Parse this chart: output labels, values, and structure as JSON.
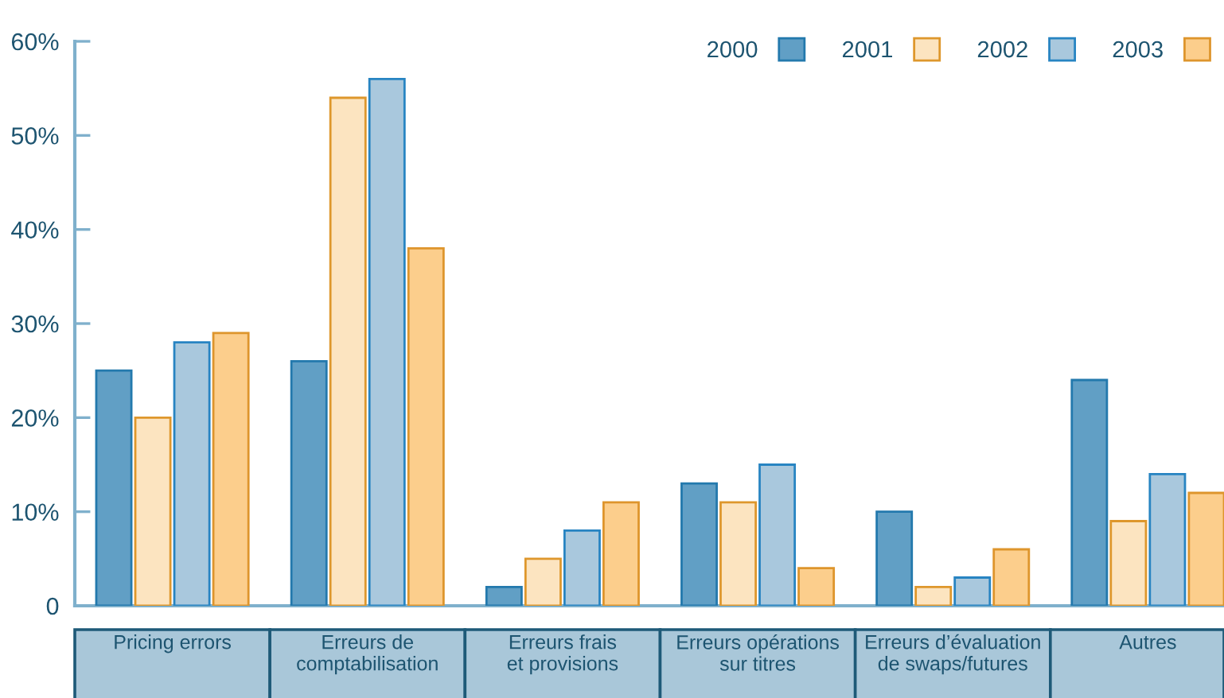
{
  "chart_data": {
    "type": "bar",
    "categories": [
      "Pricing errors",
      "Erreurs de\ncomptabilisation",
      "Erreurs frais\net provisions",
      "Erreurs opérations\nsur titres",
      "Erreurs d’évaluation\nde swaps/futures",
      "Autres"
    ],
    "series": [
      {
        "name": "2000",
        "color": "#619fc5",
        "values": [
          25,
          26,
          2,
          13,
          10,
          24
        ]
      },
      {
        "name": "2001",
        "color": "#fce4c0",
        "values": [
          20,
          54,
          5,
          11,
          2,
          9
        ]
      },
      {
        "name": "2002",
        "color": "#a9c8dd",
        "values": [
          28,
          56,
          8,
          15,
          3,
          14
        ]
      },
      {
        "name": "2003",
        "color": "#fcce8c",
        "values": [
          29,
          38,
          11,
          4,
          6,
          12
        ]
      }
    ],
    "ylim": [
      0,
      60
    ],
    "yticks": [
      0,
      {
        "value": 10,
        "label": "10%"
      },
      {
        "value": 20,
        "label": "20%"
      },
      {
        "value": 30,
        "label": "30%"
      },
      {
        "value": 40,
        "label": "40%"
      },
      {
        "value": 50,
        "label": "50%"
      },
      {
        "value": 60,
        "label": "60%"
      }
    ],
    "grid": false,
    "legend": "top right"
  }
}
